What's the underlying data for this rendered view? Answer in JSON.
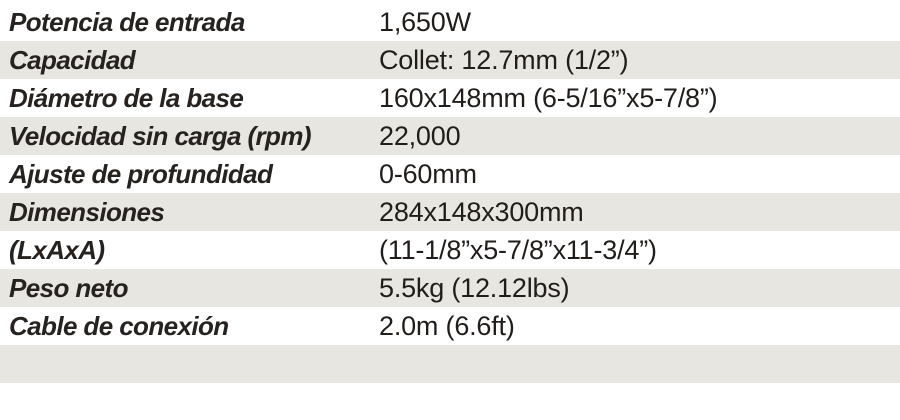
{
  "table": {
    "columns": [
      "label",
      "value"
    ],
    "rows": [
      {
        "label": "Potencia de entrada",
        "value": "1,650W"
      },
      {
        "label": "Capacidad",
        "value": "Collet: 12.7mm (1/2”)"
      },
      {
        "label": "Diámetro de la base",
        "value": "160x148mm (6-5/16”x5-7/8”)"
      },
      {
        "label": "Velocidad sin carga (rpm)",
        "value": "22,000"
      },
      {
        "label": "Ajuste de profundidad",
        "value": "0-60mm"
      },
      {
        "label": "Dimensiones",
        "value": "284x148x300mm"
      },
      {
        "label": "(LxAxA)",
        "value": "(11-1/8”x5-7/8”x11-3/4”)"
      },
      {
        "label": "Peso neto",
        "value": "5.5kg (12.12lbs)"
      },
      {
        "label": "Cable de conexión",
        "value": "2.0m (6.6ft)"
      },
      {
        "label": "",
        "value": ""
      }
    ],
    "colors": {
      "band": "#e8e6e1",
      "label_text": "#262220",
      "value_text": "#211d1b",
      "background": "#ffffff"
    }
  }
}
